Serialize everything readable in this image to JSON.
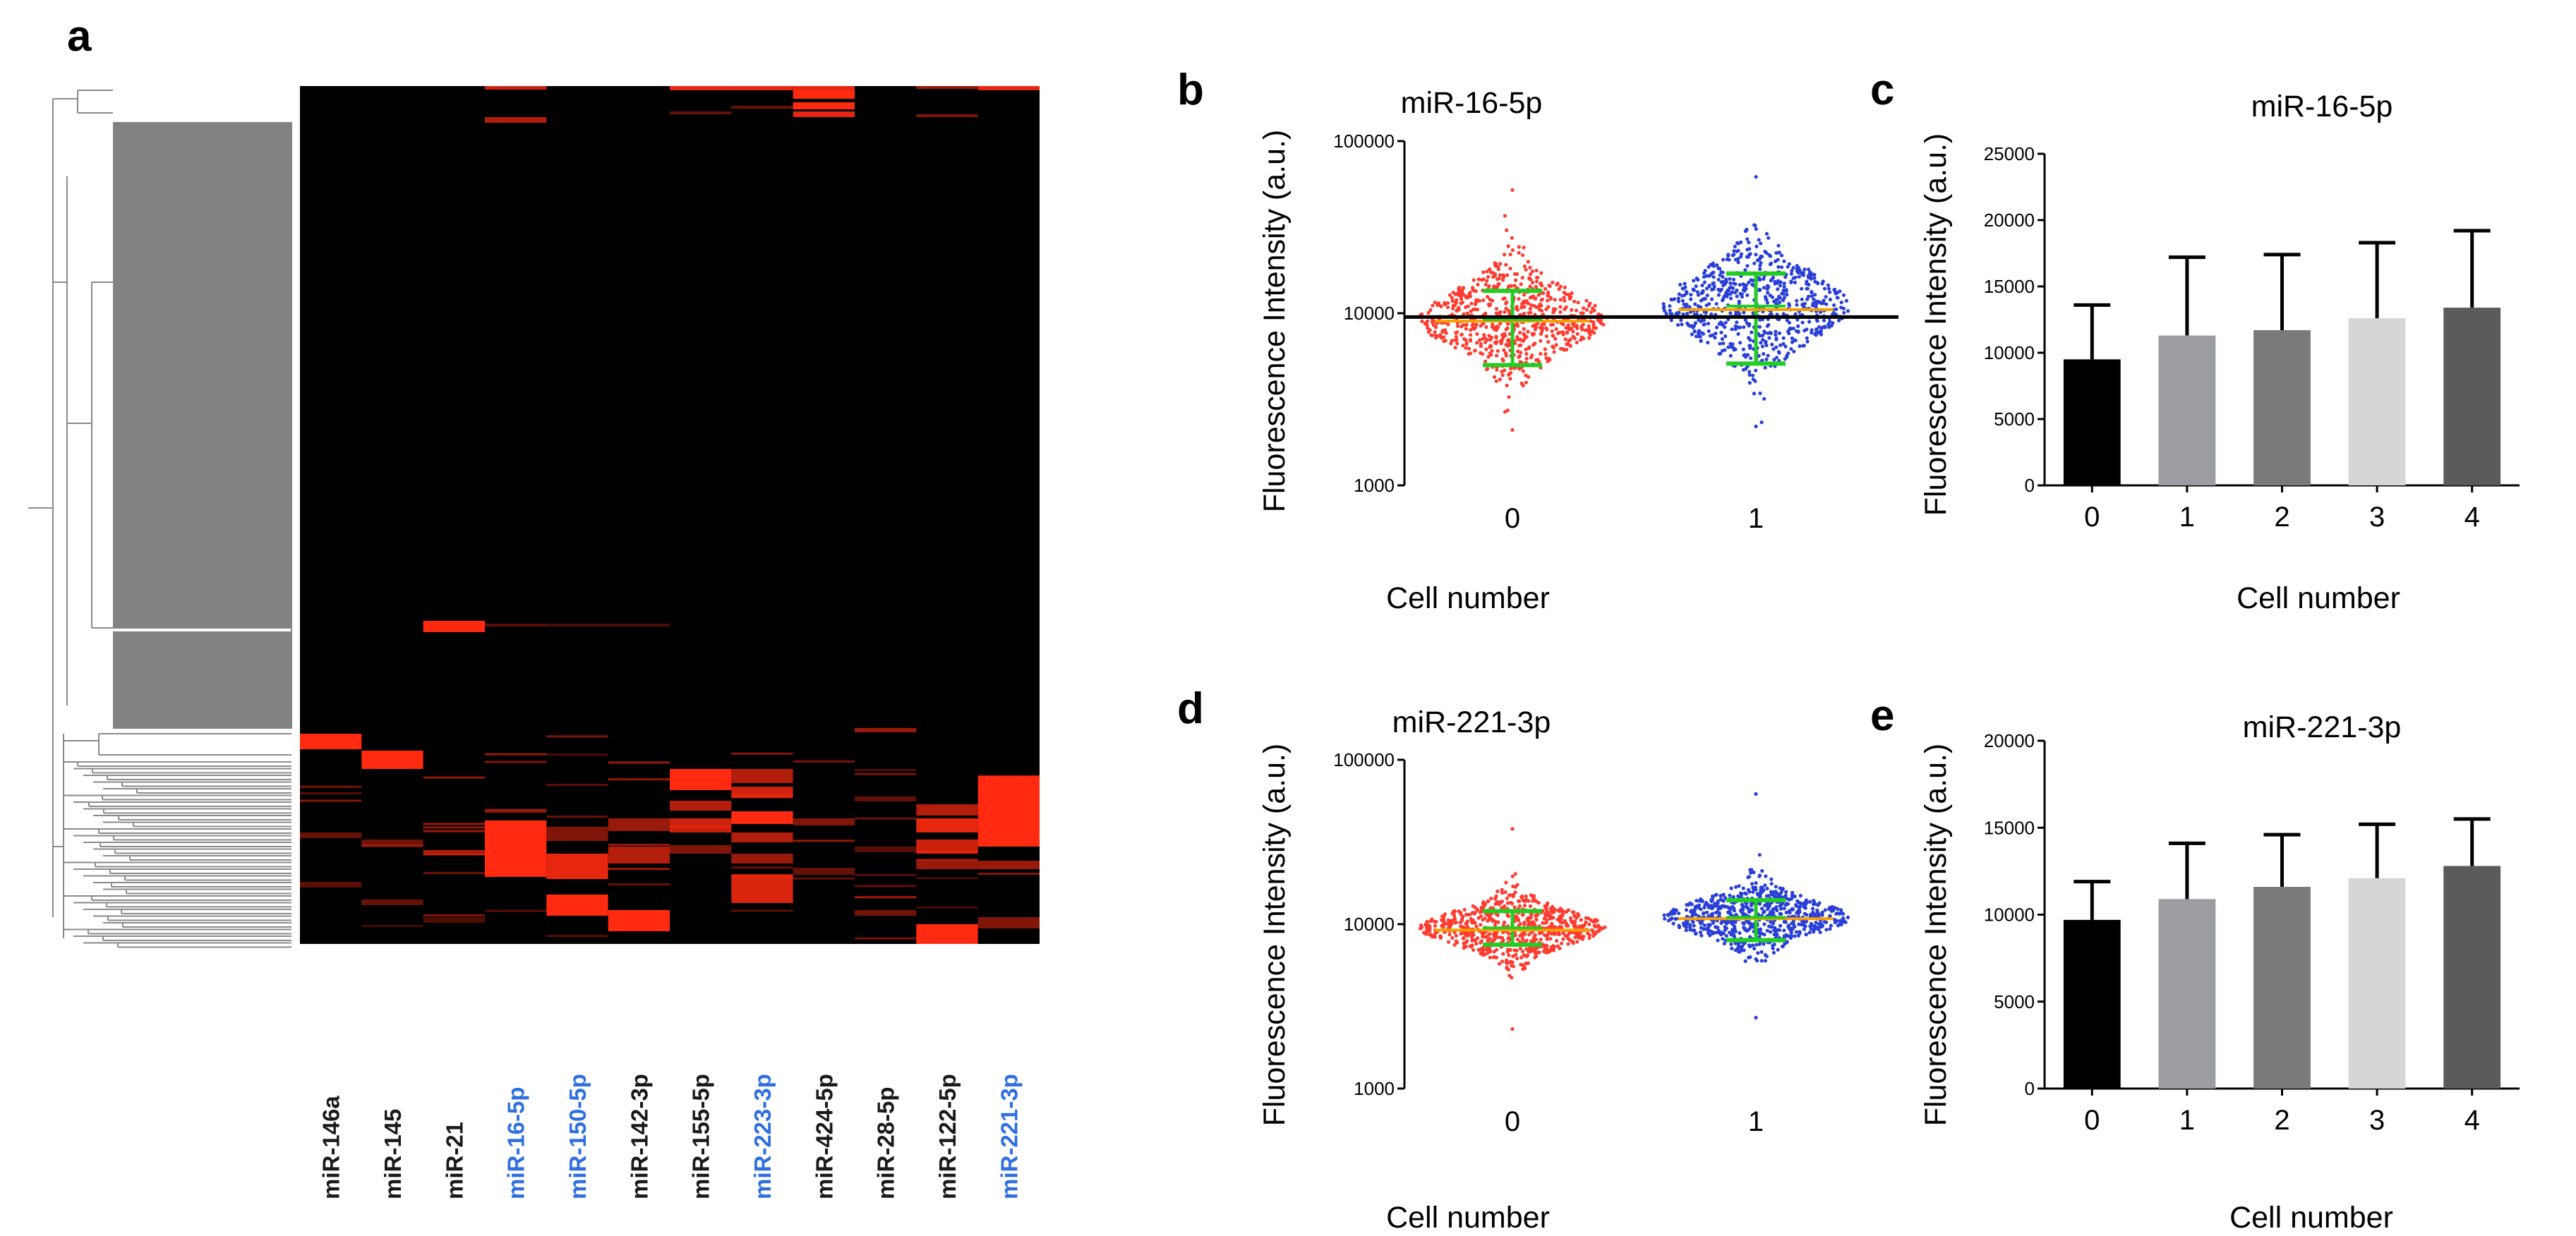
{
  "panels": {
    "a": "a",
    "b": "b",
    "c": "c",
    "d": "d",
    "e": "e"
  },
  "colors": {
    "highlight_label": "#2f6fe0",
    "default_label": "#1a1a1a",
    "heat_high": "#ff2a10",
    "heat_low": "#000000",
    "cluster_fill": "#828282",
    "scatter_group0": "#ff3b30",
    "scatter_group1": "#2a3fd8",
    "error_bar": "#22cc22",
    "median_line": "#f5a000",
    "bar_colors": [
      "#000000",
      "#9c9ca3",
      "#7a7a7a",
      "#d6d6d6",
      "#5a5a5a"
    ]
  },
  "chart_data": [
    {
      "panel": "a",
      "type": "heatmap",
      "columns": [
        {
          "label": "miR-146a",
          "highlight": false
        },
        {
          "label": "miR-145",
          "highlight": false
        },
        {
          "label": "miR-21",
          "highlight": false
        },
        {
          "label": "miR-16-5p",
          "highlight": true
        },
        {
          "label": "miR-150-5p",
          "highlight": true
        },
        {
          "label": "miR-142-3p",
          "highlight": false
        },
        {
          "label": "miR-155-5p",
          "highlight": false
        },
        {
          "label": "miR-223-3p",
          "highlight": true
        },
        {
          "label": "miR-424-5p",
          "highlight": false
        },
        {
          "label": "miR-28-5p",
          "highlight": false
        },
        {
          "label": "miR-122-5p",
          "highlight": false
        },
        {
          "label": "miR-221-3p",
          "highlight": true
        }
      ],
      "row_dendrogram": true
    },
    {
      "panel": "b",
      "type": "scatter",
      "title": "miR-16-5p",
      "xlabel": "Cell number",
      "ylabel": "Fluorescence Intensity (a.u.)",
      "yscale": "log",
      "ylim": [
        1000,
        100000
      ],
      "yticks": [
        "1000",
        "10000",
        "100000"
      ],
      "categories": [
        "0",
        "1"
      ],
      "threshold": 9500,
      "groups": [
        {
          "category": "0",
          "mean": 9200,
          "sd_low": 5000,
          "sd_high": 13500,
          "min": 2100,
          "max": 52000,
          "median": 9000
        },
        {
          "category": "1",
          "mean": 11000,
          "sd_low": 5100,
          "sd_high": 17000,
          "min": 2200,
          "max": 62000,
          "median": 10500
        }
      ]
    },
    {
      "panel": "c",
      "type": "bar",
      "title": "miR-16-5p",
      "xlabel": "Cell number",
      "ylabel": "Fluorescence Intensity (a.u.)",
      "ylim": [
        0,
        25000
      ],
      "yticks": [
        "0",
        "5000",
        "10000",
        "15000",
        "20000",
        "25000"
      ],
      "categories": [
        "0",
        "1",
        "2",
        "3",
        "4"
      ],
      "values": [
        9500,
        11300,
        11700,
        12600,
        13400
      ],
      "errors": [
        4100,
        5900,
        5700,
        5700,
        5800
      ]
    },
    {
      "panel": "d",
      "type": "scatter",
      "title": "miR-221-3p",
      "xlabel": "Cell number",
      "ylabel": "Fluorescence Intensity (a.u.)",
      "yscale": "log",
      "ylim": [
        1000,
        100000
      ],
      "yticks": [
        "1000",
        "10000",
        "100000"
      ],
      "categories": [
        "0",
        "1"
      ],
      "groups": [
        {
          "category": "0",
          "mean": 9500,
          "sd_low": 7500,
          "sd_high": 12000,
          "min": 2300,
          "max": 38000,
          "median": 9200
        },
        {
          "category": "1",
          "mean": 11000,
          "sd_low": 8000,
          "sd_high": 14000,
          "min": 2700,
          "max": 62000,
          "median": 10800
        }
      ]
    },
    {
      "panel": "e",
      "type": "bar",
      "title": "miR-221-3p",
      "xlabel": "Cell number",
      "ylabel": "Fluorescence Intensity (a.u.)",
      "ylim": [
        0,
        20000
      ],
      "yticks": [
        "0",
        "5000",
        "10000",
        "15000",
        "20000"
      ],
      "categories": [
        "0",
        "1",
        "2",
        "3",
        "4"
      ],
      "values": [
        9700,
        10900,
        11600,
        12100,
        12800
      ],
      "errors": [
        2200,
        3200,
        3000,
        3100,
        2700
      ]
    }
  ]
}
